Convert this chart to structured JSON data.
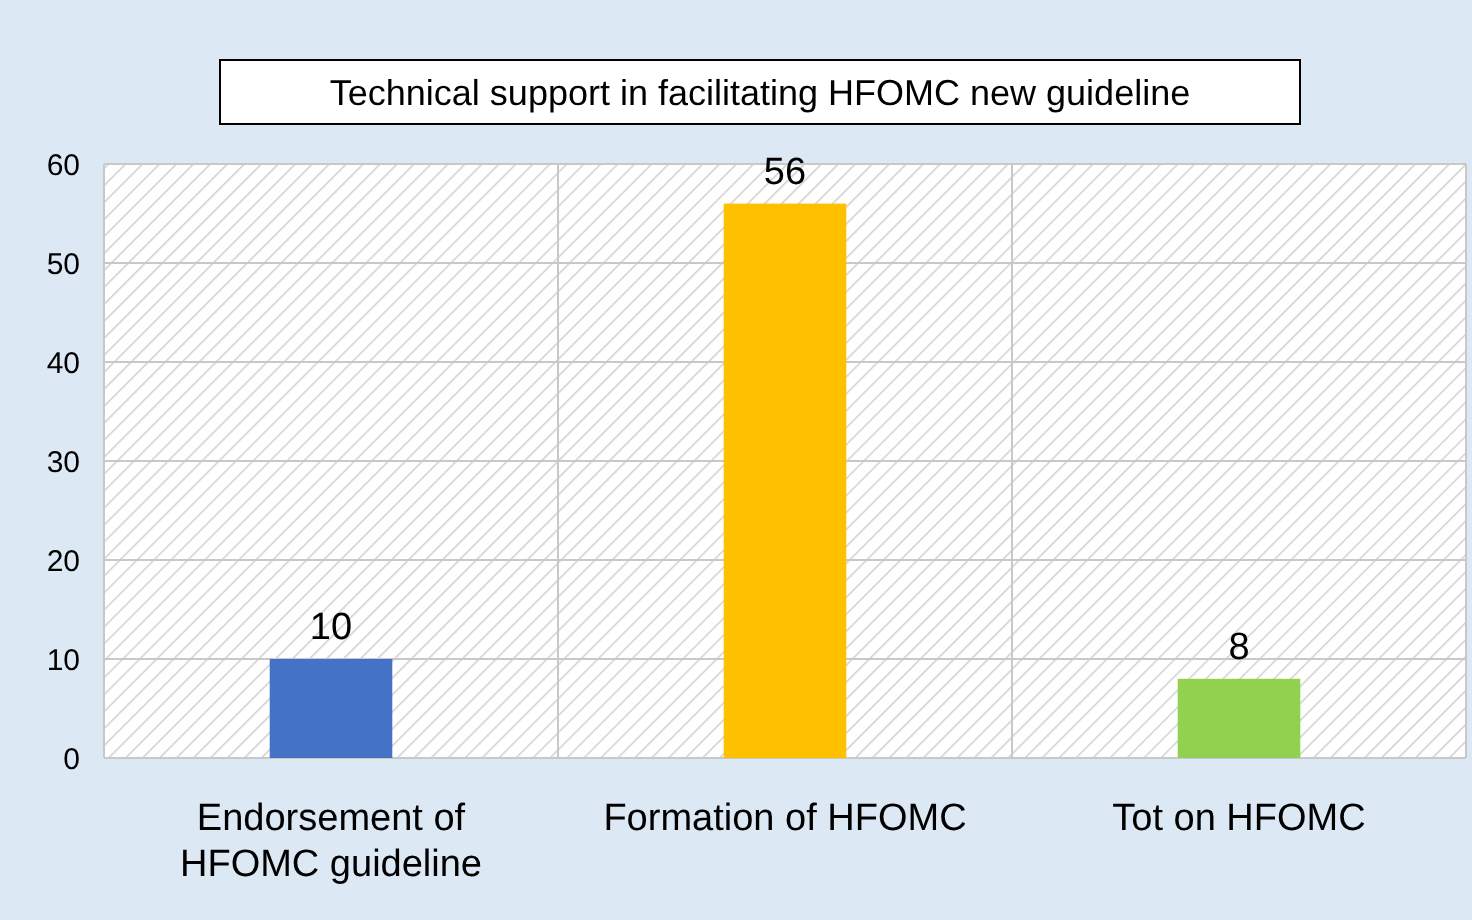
{
  "chart_data": {
    "type": "bar",
    "title": "Technical support in facilitating HFOMC new guideline",
    "categories": [
      "Endorsement of HFOMC guideline",
      "Formation of HFOMC",
      "Tot on HFOMC"
    ],
    "values": [
      10,
      56,
      8
    ],
    "colors": [
      "#4472c4",
      "#ffc000",
      "#92d050"
    ],
    "ylim": [
      0,
      60
    ],
    "yticks": [
      0,
      10,
      20,
      30,
      40,
      50,
      60
    ],
    "grid": "y",
    "data_labels": true
  }
}
